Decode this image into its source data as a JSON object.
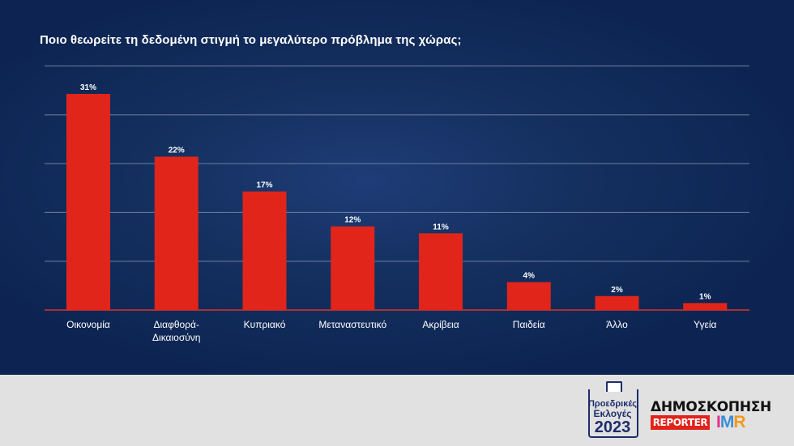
{
  "title": "Ποιο θεωρείτε τη δεδομένη στιγμή το μεγαλύτερο πρόβλημα της χώρας;",
  "colors": {
    "background": "#0d2452",
    "bar": "#e1251b",
    "gridline": "#6f7f9f",
    "baseline": "#d9342b",
    "text": "#ffffff",
    "footer": "#e1e1e1"
  },
  "chart_data": {
    "type": "bar",
    "title": "Ποιο θεωρείτε τη δεδομένη στιγμή το μεγαλύτερο πρόβλημα της χώρας;",
    "categories": [
      "Οικονομία",
      "Διαφθορά-\nΔικαιοσύνη",
      "Κυπριακό",
      "Μεταναστευτικό",
      "Ακρίβεια",
      "Παιδεία",
      "Άλλο",
      "Υγεία"
    ],
    "values": [
      31,
      22,
      17,
      12,
      11,
      4,
      2,
      1
    ],
    "data_labels": [
      "31%",
      "22%",
      "17%",
      "12%",
      "11%",
      "4%",
      "2%",
      "1%"
    ],
    "ylim": [
      0,
      35
    ],
    "grid": true,
    "legend": "none"
  },
  "footer": {
    "election_logo": {
      "line1": "Προεδρικές",
      "line2": "Εκλογές",
      "line3": "2023",
      "icon": "ballot-box-icon"
    },
    "poll_title": "ΔΗΜΟΣΚΟΠΗΣΗ",
    "reporter_logo": "REPORTER",
    "imr_logo": {
      "i": "I",
      "m": "M",
      "r": "R"
    }
  }
}
